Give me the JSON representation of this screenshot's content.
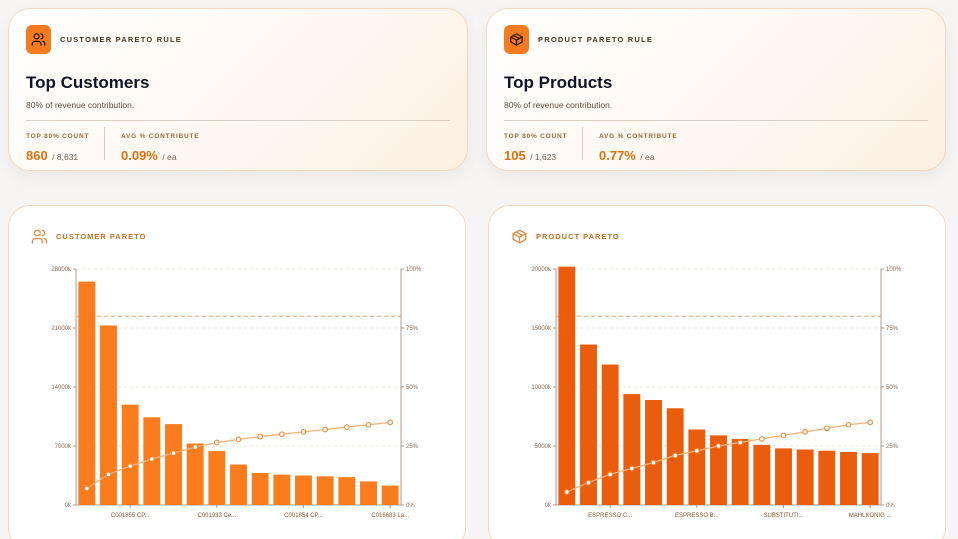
{
  "cards": [
    {
      "id": "customer",
      "icon": "users-icon",
      "eyebrow": "CUSTOMER PARETO RULE",
      "title": "Top Customers",
      "subtitle": "80% of revenue contribution.",
      "stat1_label": "TOP 80% COUNT",
      "stat1_value": "860",
      "stat1_total": "/ 8,631",
      "stat2_label": "AVG % CONTRIBUTE",
      "stat2_value": "0.09%",
      "stat2_unit": "/ ea"
    },
    {
      "id": "product",
      "icon": "box-icon",
      "eyebrow": "PRODUCT PARETO RULE",
      "title": "Top Products",
      "subtitle": "80% of revenue contribution.",
      "stat1_label": "TOP 80% COUNT",
      "stat1_value": "105",
      "stat1_total": "/ 1,623",
      "stat2_label": "AVG % CONTRIBUTE",
      "stat2_value": "0.77%",
      "stat2_unit": "/ ea"
    }
  ],
  "chart_titles": [
    "CUSTOMER PARETO",
    "PRODUCT PARETO"
  ],
  "colors": {
    "accent": "#f47b1f",
    "customer_bar": "#fa7c1d",
    "product_bar": "#ea5d0c",
    "line": "#f5b27a"
  },
  "chart_data": [
    {
      "type": "bar",
      "title": "",
      "categories": [
        "",
        "",
        "C001855 CP...",
        "",
        "",
        "",
        "C001933 Ce...",
        "",
        "",
        "",
        "C001854 CP...",
        "",
        "",
        "",
        "C016683 La..."
      ],
      "values": [
        26500,
        21300,
        11900,
        10400,
        9600,
        7300,
        6400,
        4800,
        3800,
        3600,
        3500,
        3400,
        3300,
        2800,
        2300
      ],
      "cumulative_pct": [
        7,
        13,
        16.5,
        19.5,
        22,
        24.5,
        26.5,
        27.8,
        29,
        30,
        31,
        32,
        33,
        34,
        35
      ],
      "ylim": [
        0,
        28000
      ],
      "yticks": [
        "0k",
        "7000k",
        "14000k",
        "21000k",
        "28000k"
      ],
      "y2lim": [
        0,
        100
      ],
      "y2ticks": [
        "0%",
        "25%",
        "50%",
        "75%",
        "100%"
      ],
      "threshold_pct": 80,
      "grid": true,
      "xlabel": "",
      "ylabel": ""
    },
    {
      "type": "bar",
      "title": "",
      "categories": [
        "",
        "",
        "ESPRESSO C...",
        "",
        "",
        "",
        "ESPRESSO B...",
        "",
        "",
        "",
        "SUBSTITUTI...",
        "",
        "",
        "",
        "MAHLKONIG ..."
      ],
      "values": [
        20200,
        13600,
        11900,
        9400,
        8900,
        8200,
        6400,
        5900,
        5600,
        5100,
        4800,
        4700,
        4600,
        4500,
        4400
      ],
      "cumulative_pct": [
        5.5,
        9.5,
        13,
        15.5,
        18,
        21,
        23,
        25,
        26.5,
        28,
        29.5,
        31,
        32.5,
        34,
        35
      ],
      "ylim": [
        0,
        20000
      ],
      "yticks": [
        "0k",
        "5000k",
        "10000k",
        "15000k",
        "20000k"
      ],
      "y2lim": [
        0,
        100
      ],
      "y2ticks": [
        "0%",
        "25%",
        "50%",
        "75%",
        "100%"
      ],
      "threshold_pct": 80,
      "grid": true,
      "xlabel": "",
      "ylabel": ""
    }
  ]
}
